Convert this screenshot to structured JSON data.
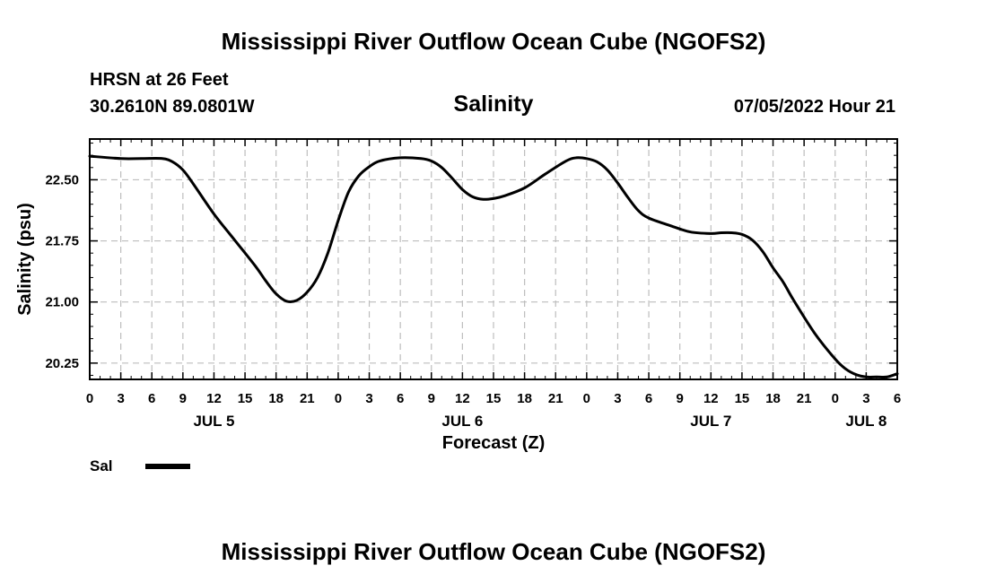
{
  "header": {
    "title": "Mississippi River Outflow Ocean Cube (NGOFS2)",
    "station_line": "HRSN at 26 Feet",
    "coords_line": "30.2610N  89.0801W",
    "timestamp": "07/05/2022 Hour 21"
  },
  "footer": {
    "title": "Mississippi River Outflow Ocean Cube (NGOFS2)"
  },
  "legend": {
    "label": "Sal",
    "color": "#000000"
  },
  "chart_data": {
    "type": "line",
    "title": "Salinity",
    "xlabel": "Forecast (Z)",
    "ylabel": "Salinity (psu)",
    "x_unit": "hours from JUL 5 00Z",
    "xlim": [
      0,
      78
    ],
    "ylim": [
      20.05,
      23.0
    ],
    "grid": true,
    "legend_position": "bottom-left",
    "y_ticks": [
      {
        "value": 20.25,
        "label": "20.25"
      },
      {
        "value": 21.0,
        "label": "21.00"
      },
      {
        "value": 21.75,
        "label": "21.75"
      },
      {
        "value": 22.5,
        "label": "22.50"
      }
    ],
    "x_ticks": [
      {
        "value": 0,
        "label": "0"
      },
      {
        "value": 3,
        "label": "3"
      },
      {
        "value": 6,
        "label": "6"
      },
      {
        "value": 9,
        "label": "9"
      },
      {
        "value": 12,
        "label": "12"
      },
      {
        "value": 15,
        "label": "15"
      },
      {
        "value": 18,
        "label": "18"
      },
      {
        "value": 21,
        "label": "21"
      },
      {
        "value": 24,
        "label": "0"
      },
      {
        "value": 27,
        "label": "3"
      },
      {
        "value": 30,
        "label": "6"
      },
      {
        "value": 33,
        "label": "9"
      },
      {
        "value": 36,
        "label": "12"
      },
      {
        "value": 39,
        "label": "15"
      },
      {
        "value": 42,
        "label": "18"
      },
      {
        "value": 45,
        "label": "21"
      },
      {
        "value": 48,
        "label": "0"
      },
      {
        "value": 51,
        "label": "3"
      },
      {
        "value": 54,
        "label": "6"
      },
      {
        "value": 57,
        "label": "9"
      },
      {
        "value": 60,
        "label": "12"
      },
      {
        "value": 63,
        "label": "15"
      },
      {
        "value": 66,
        "label": "18"
      },
      {
        "value": 69,
        "label": "21"
      },
      {
        "value": 72,
        "label": "0"
      },
      {
        "value": 75,
        "label": "3"
      },
      {
        "value": 78,
        "label": "6"
      }
    ],
    "day_labels": [
      {
        "value": 12,
        "label": "JUL 5"
      },
      {
        "value": 36,
        "label": "JUL 6"
      },
      {
        "value": 60,
        "label": "JUL 7"
      },
      {
        "value": 75,
        "label": "JUL 8"
      }
    ],
    "series": [
      {
        "name": "Sal",
        "color": "#000000",
        "x": [
          0,
          3,
          5,
          7,
          8,
          9,
          10,
          12,
          14,
          16,
          17,
          18,
          19,
          20,
          21,
          22,
          23,
          24,
          25,
          26,
          27,
          28,
          30,
          32,
          33,
          34,
          35,
          36,
          37,
          38,
          39,
          40,
          42,
          44,
          46,
          47,
          48,
          49,
          50,
          51,
          52,
          53,
          54,
          56,
          58,
          60,
          61,
          62,
          63,
          64,
          65,
          66,
          67,
          68,
          70,
          72,
          73,
          74,
          75,
          76,
          77,
          78
        ],
        "y": [
          22.79,
          22.76,
          22.76,
          22.76,
          22.72,
          22.62,
          22.45,
          22.08,
          21.76,
          21.44,
          21.26,
          21.1,
          21.01,
          21.02,
          21.12,
          21.3,
          21.6,
          22.0,
          22.35,
          22.55,
          22.66,
          22.73,
          22.77,
          22.76,
          22.73,
          22.65,
          22.52,
          22.38,
          22.29,
          22.26,
          22.27,
          22.3,
          22.4,
          22.57,
          22.73,
          22.77,
          22.76,
          22.72,
          22.62,
          22.46,
          22.28,
          22.12,
          22.03,
          21.94,
          21.86,
          21.84,
          21.85,
          21.85,
          21.83,
          21.76,
          21.62,
          21.42,
          21.24,
          21.02,
          20.62,
          20.3,
          20.18,
          20.11,
          20.08,
          20.08,
          20.08,
          20.12
        ]
      }
    ]
  }
}
